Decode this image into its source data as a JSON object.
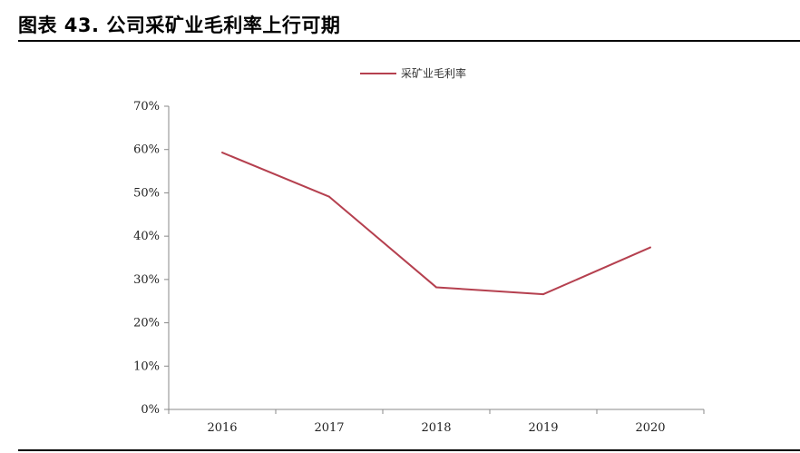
{
  "title": "图表 43. 公司采矿业毛利率上行可期",
  "chart_data": {
    "type": "line",
    "categories": [
      "2016",
      "2017",
      "2018",
      "2019",
      "2020"
    ],
    "series": [
      {
        "name": "采矿业毛利率",
        "values": [
          59.3,
          49.1,
          28.2,
          26.6,
          37.4
        ],
        "color": "#b5404f"
      }
    ],
    "yticks": [
      "0%",
      "10%",
      "20%",
      "30%",
      "40%",
      "50%",
      "60%",
      "70%"
    ],
    "ylim": [
      0,
      70
    ],
    "grid": false,
    "legend_position": "top-center"
  }
}
